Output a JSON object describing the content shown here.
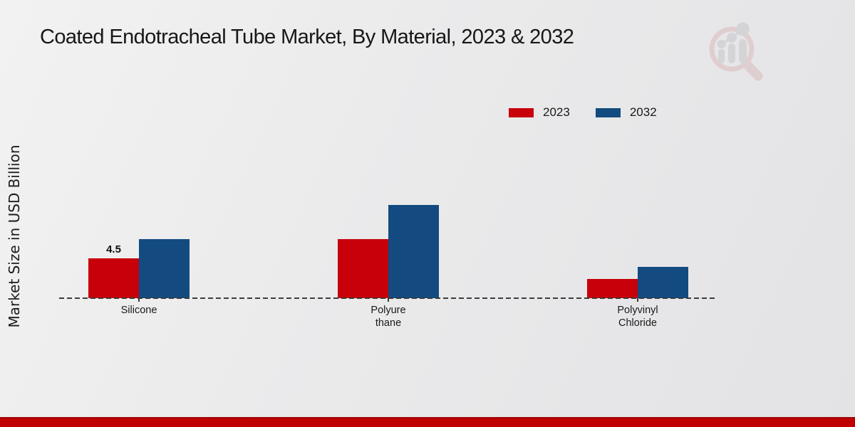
{
  "chart_data": {
    "type": "bar",
    "title": "Coated Endotracheal Tube Market, By Material, 2023 & 2032",
    "xlabel": "",
    "ylabel": "Market Size in USD Billion",
    "unit": "USD Billion",
    "categories": [
      "Silicone",
      "Polyure\nthane",
      "Polyvinyl\nChloride"
    ],
    "series": [
      {
        "name": "2023",
        "color": "#c7000a",
        "values": [
          4.5,
          6.7,
          2.2
        ],
        "labels": [
          "4.5",
          "",
          ""
        ]
      },
      {
        "name": "2032",
        "color": "#134b80",
        "values": [
          6.7,
          10.5,
          3.5
        ],
        "labels": [
          "",
          "",
          ""
        ]
      }
    ],
    "ylim": [
      0,
      12
    ],
    "grid": false,
    "legend_position": "top-right",
    "axis_style": "dashed-baseline-only"
  },
  "colors": {
    "series_2023": "#c7000a",
    "series_2032": "#134b80",
    "axis": "#3c3c3c",
    "footer_bar": "#c00000",
    "background": "#e9e9ea"
  }
}
